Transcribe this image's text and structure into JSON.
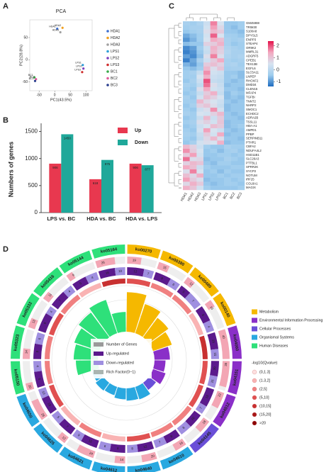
{
  "chart_data": [
    {
      "type": "scatter",
      "panel": "A",
      "title": "PCA",
      "xlabel": "PC1(43.5%)",
      "ylabel": "PC2(28.8%)",
      "xlim": [
        -80,
        120
      ],
      "xticks": [
        -50,
        0,
        50,
        100
      ],
      "ylim": [
        -70,
        90
      ],
      "yticks": [
        -50,
        0,
        50
      ],
      "series": [
        {
          "name": "HDA1",
          "color": "#3d6fd1",
          "x": [
            8
          ],
          "values": [
            70
          ]
        },
        {
          "name": "HDA2",
          "color": "#f0a020",
          "x": [
            25
          ],
          "values": [
            72
          ]
        },
        {
          "name": "HDA3",
          "color": "#a0a0a0",
          "x": [
            18
          ],
          "values": [
            62
          ]
        },
        {
          "name": "LPS1",
          "color": "#2f9fd8",
          "x": [
            90
          ],
          "values": [
            -12
          ]
        },
        {
          "name": "LPS2",
          "color": "#7b3fbf",
          "x": [
            92
          ],
          "values": [
            -20
          ]
        },
        {
          "name": "LPS3",
          "color": "#d0302f",
          "x": [
            88
          ],
          "values": [
            -28
          ]
        },
        {
          "name": "BC1",
          "color": "#3aaa4a",
          "x": [
            -65
          ],
          "values": [
            -40
          ]
        },
        {
          "name": "BC2",
          "color": "#e05a9a",
          "x": [
            -60
          ],
          "values": [
            -44
          ]
        },
        {
          "name": "BC3",
          "color": "#2a3f8f",
          "x": [
            -63
          ],
          "values": [
            -48
          ]
        }
      ]
    },
    {
      "type": "bar",
      "panel": "B",
      "ylabel": "Numbers of genes",
      "categories": [
        "LPS vs. BC",
        "HDA vs. BC",
        "HDA vs. LPS"
      ],
      "ylim": [
        0,
        1600
      ],
      "yticks": [
        0,
        500,
        1000,
        1500
      ],
      "legend": "top-right",
      "series": [
        {
          "name": "Up",
          "color": "#e8384f",
          "values": [
            906,
            618,
            906
          ]
        },
        {
          "name": "Down",
          "color": "#1fa89a",
          "values": [
            1450,
            975,
            877
          ]
        }
      ]
    },
    {
      "type": "heatmap",
      "panel": "C",
      "samples": [
        "HDA1",
        "HDA2",
        "HDA3",
        "LPS1",
        "LPS2",
        "LPS3",
        "BC1",
        "BC2",
        "BC3"
      ],
      "genes": [
        "GM45988",
        "TRIM30",
        "S100A8",
        "DPYSL5",
        "ENPP3",
        "STEAP4",
        "OR9K2",
        "MMRL31",
        "ADGRF5",
        "CPEB1",
        "TEX13B",
        "EGFL6",
        "SLC5A11",
        "LNPEP",
        "RHOXF2",
        "DMD34",
        "CLEN15",
        "MFAP4",
        "TGFBI",
        "TNNT2",
        "NHRP2",
        "SMOC1",
        "ECHDC2",
        "ADRA2B",
        "TSSL11",
        "HBA-A1",
        "AMPD1",
        "PPBP",
        "SERPINB11",
        "PTHR1",
        "CBFA2",
        "NDUFA4L2",
        "HSD11B1",
        "SLC26A3",
        "PTTBL1",
        "SPRR2K",
        "SYCP2",
        "NOTUM",
        "IRF25",
        "COL8A1",
        "MAGIX"
      ],
      "values": [
        [
          -0.3,
          -0.4,
          -0.2,
          0.3,
          1.7,
          0.5,
          -0.5,
          -0.5,
          -0.4
        ],
        [
          -0.4,
          -0.3,
          -0.3,
          0.4,
          1.5,
          0.7,
          -0.5,
          -0.6,
          -0.4
        ],
        [
          -0.5,
          -0.4,
          -0.3,
          0.6,
          1.2,
          0.9,
          -0.5,
          -0.5,
          -0.6
        ],
        [
          -0.8,
          -0.6,
          -0.4,
          0.4,
          1.9,
          0.5,
          -0.4,
          -0.4,
          -0.5
        ],
        [
          -1.0,
          -0.7,
          -0.4,
          0.5,
          1.4,
          1.1,
          -0.3,
          -0.4,
          -0.3
        ],
        [
          -0.6,
          -0.5,
          -0.5,
          0.8,
          0.9,
          1.3,
          -0.3,
          -0.5,
          -0.4
        ],
        [
          -1.1,
          -0.9,
          -0.4,
          0.3,
          1.3,
          0.9,
          -0.2,
          -0.3,
          -0.4
        ],
        [
          -1.2,
          -1.0,
          -0.5,
          0.2,
          1.2,
          0.8,
          -0.1,
          -0.3,
          -0.3
        ],
        [
          -0.9,
          -1.1,
          -0.6,
          0.6,
          1.7,
          0.6,
          -0.2,
          -0.3,
          -0.2
        ],
        [
          -1.2,
          -0.8,
          -0.3,
          0.3,
          0.9,
          1.4,
          -0.3,
          -0.4,
          -0.3
        ],
        [
          -0.7,
          -0.9,
          -0.5,
          0.9,
          1.1,
          0.8,
          -0.3,
          -0.2,
          -0.4
        ],
        [
          -0.5,
          -0.6,
          -0.4,
          1.2,
          0.6,
          1.0,
          -0.4,
          -0.3,
          -0.3
        ],
        [
          -0.4,
          -0.3,
          0.2,
          1.6,
          0.4,
          0.3,
          -0.5,
          -0.5,
          -0.6
        ],
        [
          -0.4,
          -0.4,
          0.5,
          1.3,
          0.3,
          0.2,
          -0.5,
          -0.4,
          -0.6
        ],
        [
          -0.5,
          -0.3,
          0.3,
          2.0,
          0.2,
          0.1,
          -0.5,
          -0.6,
          -0.5
        ],
        [
          -0.3,
          -0.4,
          0.1,
          1.8,
          0.6,
          0.2,
          -0.6,
          -0.5,
          -0.5
        ],
        [
          -0.4,
          -0.5,
          0.6,
          1.4,
          0.4,
          0.3,
          -0.5,
          -0.5,
          -0.6
        ],
        [
          -0.5,
          -0.4,
          0.2,
          0.9,
          1.3,
          0.2,
          -0.6,
          -0.4,
          -0.5
        ],
        [
          -0.3,
          -0.5,
          0.4,
          1.1,
          0.8,
          0.5,
          -0.6,
          -0.5,
          -0.6
        ],
        [
          -0.4,
          -0.4,
          1.2,
          0.7,
          0.5,
          0.3,
          -0.5,
          -0.6,
          -0.5
        ],
        [
          -0.5,
          -0.3,
          0.8,
          1.0,
          0.6,
          0.2,
          -0.6,
          -0.5,
          -0.5
        ],
        [
          -0.4,
          -0.5,
          0.3,
          0.6,
          1.6,
          0.4,
          -0.6,
          -0.5,
          -0.5
        ],
        [
          -0.3,
          -0.4,
          0.5,
          0.4,
          0.8,
          1.2,
          -0.5,
          -0.6,
          -0.5
        ],
        [
          -0.5,
          -0.4,
          0.2,
          1.2,
          0.3,
          0.9,
          -0.5,
          -0.5,
          -0.6
        ],
        [
          -0.4,
          -0.3,
          0.6,
          0.8,
          0.4,
          1.0,
          -0.6,
          -0.5,
          -0.5
        ],
        [
          -0.5,
          -0.4,
          0.3,
          0.5,
          1.1,
          0.9,
          -0.6,
          -0.5,
          -0.4
        ],
        [
          -0.4,
          -0.5,
          0.4,
          1.5,
          0.5,
          0.3,
          -0.5,
          -0.6,
          -0.5
        ],
        [
          -0.3,
          -0.4,
          0.2,
          0.9,
          0.4,
          1.4,
          -0.6,
          -0.5,
          -0.5
        ],
        [
          -0.4,
          -0.5,
          0.1,
          0.7,
          1.2,
          0.6,
          -0.5,
          -0.5,
          -0.6
        ],
        [
          -0.5,
          -0.3,
          0.4,
          0.6,
          0.5,
          1.3,
          -0.6,
          -0.5,
          -0.5
        ],
        [
          1.2,
          0.8,
          0.3,
          -0.4,
          -0.5,
          -0.5,
          -0.3,
          -0.4,
          -0.4
        ],
        [
          1.6,
          0.9,
          0.5,
          -0.5,
          -0.4,
          -0.6,
          -0.4,
          -0.3,
          -0.5
        ],
        [
          0.9,
          1.5,
          0.4,
          -0.5,
          -0.5,
          -0.4,
          -0.4,
          -0.5,
          -0.4
        ],
        [
          1.8,
          0.6,
          0.7,
          -0.6,
          -0.5,
          -0.5,
          -0.3,
          -0.4,
          -0.5
        ],
        [
          0.8,
          1.2,
          1.0,
          -0.5,
          -0.6,
          -0.4,
          -0.4,
          -0.5,
          -0.5
        ],
        [
          1.4,
          1.1,
          0.3,
          -0.4,
          -0.5,
          -0.5,
          -0.5,
          -0.4,
          -0.4
        ],
        [
          0.6,
          1.7,
          0.5,
          -0.5,
          -0.4,
          -0.6,
          -0.4,
          -0.5,
          -0.5
        ],
        [
          1.1,
          0.7,
          1.3,
          -0.5,
          -0.5,
          -0.4,
          -0.5,
          -0.4,
          -0.4
        ],
        [
          1.5,
          0.9,
          0.6,
          -0.6,
          -0.5,
          -0.5,
          -0.4,
          -0.5,
          -0.4
        ],
        [
          0.7,
          1.3,
          0.9,
          -0.5,
          -0.6,
          -0.5,
          -0.4,
          -0.4,
          -0.5
        ],
        [
          1.3,
          1.0,
          0.4,
          -0.4,
          -0.5,
          -0.5,
          -0.5,
          -0.5,
          -0.4
        ]
      ],
      "zlim": [
        -1.4,
        2.4
      ],
      "zticks": [
        -1,
        0,
        1,
        2
      ],
      "colors": [
        "#1e6cc0",
        "#9fcdee",
        "#d7e3f0",
        "#f3a8c0",
        "#e3124b"
      ]
    },
    {
      "type": "circos",
      "panel": "D",
      "classes": [
        {
          "name": "Metabolism",
          "color": "#f5b800"
        },
        {
          "name": "Environmental Information Processing",
          "color": "#8a2fc8"
        },
        {
          "name": "Cellular Processes",
          "color": "#6a4fd8"
        },
        {
          "name": "Organismal Systems",
          "color": "#29a8e0"
        },
        {
          "name": "Human Diseases",
          "color": "#2ee07a"
        }
      ],
      "ring_legend": [
        {
          "name": "Number of Genes",
          "color": "#9a9a9a"
        },
        {
          "name": "Up-regulated",
          "color": "#5b1a8c"
        },
        {
          "name": "Down-regulated",
          "color": "#9f8fe0"
        },
        {
          "name": "Rich Factor(0~1)",
          "color": "#a9b4b0"
        }
      ],
      "q_title": "-log10(Qvalue)",
      "q_bins": [
        {
          "name": "(0,1.3]",
          "color": "#fde0e0"
        },
        {
          "name": "(1.3,2]",
          "color": "#f9b3b3"
        },
        {
          "name": "(2,5]",
          "color": "#f08080"
        },
        {
          "name": "(5,10]",
          "color": "#e05050"
        },
        {
          "name": "(10,15]",
          "color": "#c83030"
        },
        {
          "name": "(15,20]",
          "color": "#a81818"
        },
        {
          "name": ">20",
          "color": "#8b0000"
        }
      ],
      "terms": [
        {
          "id": "ko00270",
          "class": "Metabolism",
          "genes": 19,
          "up": 12,
          "down": 7,
          "rich": 0.9,
          "q": "(5,10]"
        },
        {
          "id": "ko00380",
          "class": "Metabolism",
          "genes": 15,
          "up": 9,
          "down": 6,
          "rich": 0.7,
          "q": "(2,5]"
        },
        {
          "id": "ko00480",
          "class": "Metabolism",
          "genes": 12,
          "up": 5,
          "down": 7,
          "rich": 0.55,
          "q": "(2,5]"
        },
        {
          "id": "ko00140",
          "class": "Metabolism",
          "genes": 10,
          "up": 6,
          "down": 4,
          "rich": 0.45,
          "q": "(1.3,2]"
        },
        {
          "id": "ko04060",
          "class": "Environmental Information Processing",
          "genes": 40,
          "up": 25,
          "down": 15,
          "rich": 0.35,
          "q": "(10,15]"
        },
        {
          "id": "ko04151",
          "class": "Environmental Information Processing",
          "genes": 35,
          "up": 20,
          "down": 15,
          "rich": 0.25,
          "q": "(5,10]"
        },
        {
          "id": "ko04512",
          "class": "Environmental Information Processing",
          "genes": 22,
          "up": 15,
          "down": 7,
          "rich": 0.3,
          "q": "(5,10]"
        },
        {
          "id": "ko04145",
          "class": "Cellular Processes",
          "genes": 18,
          "up": 10,
          "down": 8,
          "rich": 0.2,
          "q": "(2,5]"
        },
        {
          "id": "ko04610",
          "class": "Organismal Systems",
          "genes": 16,
          "up": 9,
          "down": 7,
          "rich": 0.3,
          "q": "(2,5]"
        },
        {
          "id": "ko04640",
          "class": "Organismal Systems",
          "genes": 20,
          "up": 12,
          "down": 8,
          "rich": 0.28,
          "q": "(5,10]"
        },
        {
          "id": "ko04612",
          "class": "Organismal Systems",
          "genes": 14,
          "up": 8,
          "down": 6,
          "rich": 0.25,
          "q": "(1.3,2]"
        },
        {
          "id": "ko04621",
          "class": "Organismal Systems",
          "genes": 24,
          "up": 15,
          "down": 9,
          "rich": 0.2,
          "q": "(2,5]"
        },
        {
          "id": "ko04625",
          "class": "Organismal Systems",
          "genes": 12,
          "up": 7,
          "down": 5,
          "rich": 0.22,
          "q": "(1.3,2]"
        },
        {
          "id": "ko04650",
          "class": "Organismal Systems",
          "genes": 28,
          "up": 18,
          "down": 10,
          "rich": 0.18,
          "q": "(5,10]"
        },
        {
          "id": "ko05150",
          "class": "Human Diseases",
          "genes": 10,
          "up": 6,
          "down": 4,
          "rich": 0.5,
          "q": "(2,5]"
        },
        {
          "id": "ko05323",
          "class": "Human Diseases",
          "genes": 14,
          "up": 8,
          "down": 6,
          "rich": 0.55,
          "q": "(2,5]"
        },
        {
          "id": "ko05332",
          "class": "Human Diseases",
          "genes": 13,
          "up": 9,
          "down": 4,
          "rich": 0.6,
          "q": "(5,10]"
        },
        {
          "id": "ko05416",
          "class": "Human Diseases",
          "genes": 11,
          "up": 7,
          "down": 4,
          "rich": 0.7,
          "q": "(2,5]"
        },
        {
          "id": "ko05144",
          "class": "Human Diseases",
          "genes": 9,
          "up": 5,
          "down": 4,
          "rich": 0.8,
          "q": "(1.3,2]"
        },
        {
          "id": "ko05164",
          "class": "Human Diseases",
          "genes": 26,
          "up": 16,
          "down": 10,
          "rich": 0.45,
          "q": "(10,15]"
        }
      ]
    }
  ]
}
